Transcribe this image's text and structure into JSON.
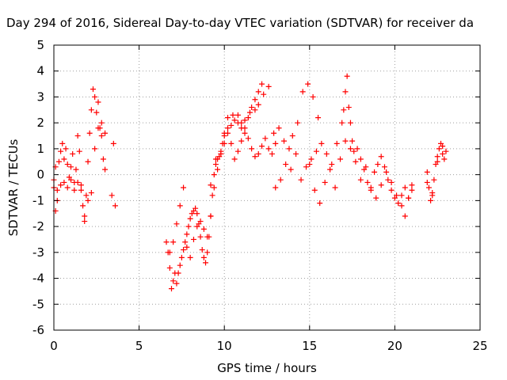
{
  "chart_data": {
    "type": "scatter",
    "title": "Day 294 of 2016, Sidereal Day-to-day VTEC variation (SDTVAR) for receiver da",
    "xlabel": "GPS time / hours",
    "ylabel": "SDTVAR / TECUs",
    "xlim": [
      0,
      25
    ],
    "ylim": [
      -6,
      5
    ],
    "xticks": [
      "0",
      "5",
      "10",
      "15",
      "20",
      "25"
    ],
    "yticks": [
      "-6",
      "-5",
      "-4",
      "-3",
      "-2",
      "-1",
      "0",
      "1",
      "2",
      "3",
      "4",
      "5"
    ],
    "grid": true,
    "marker": "+",
    "series": [
      {
        "name": "SDTVAR",
        "color": "#ff0000",
        "x": [
          0.0,
          0.1,
          0.2,
          0.3,
          0.4,
          0.5,
          0.6,
          0.7,
          0.8,
          0.9,
          1.0,
          1.1,
          1.2,
          1.3,
          1.4,
          1.5,
          1.6,
          1.7,
          1.8,
          1.9,
          2.0,
          2.1,
          2.2,
          2.3,
          2.4,
          2.5,
          2.6,
          2.7,
          2.8,
          2.9,
          3.0,
          3.5,
          3.6,
          0.0,
          0.1,
          0.2,
          0.4,
          0.6,
          0.8,
          1.0,
          1.2,
          1.4,
          1.6,
          1.8,
          2.0,
          2.2,
          2.4,
          2.6,
          2.8,
          3.0,
          3.4,
          6.6,
          6.7,
          6.8,
          6.9,
          7.0,
          7.1,
          7.2,
          7.3,
          7.4,
          7.5,
          7.6,
          7.7,
          7.8,
          7.9,
          8.0,
          8.1,
          8.2,
          8.3,
          8.4,
          8.5,
          8.6,
          8.7,
          8.8,
          8.9,
          9.0,
          9.1,
          9.2,
          9.3,
          9.4,
          9.5,
          9.6,
          9.7,
          9.8,
          9.9,
          10.0,
          10.2,
          10.4,
          10.6,
          10.8,
          11.0,
          11.2,
          11.4,
          11.6,
          11.8,
          12.0,
          12.2,
          6.8,
          7.0,
          7.2,
          7.4,
          7.6,
          7.8,
          8.0,
          8.2,
          8.4,
          8.6,
          8.8,
          9.0,
          9.2,
          9.4,
          9.6,
          9.8,
          10.0,
          10.2,
          10.4,
          10.6,
          10.8,
          11.0,
          11.2,
          11.4,
          11.6,
          11.8,
          12.0,
          12.2,
          12.4,
          12.6,
          12.8,
          13.0,
          9.2,
          9.5,
          9.8,
          10.0,
          10.2,
          10.5,
          10.8,
          11.0,
          11.2,
          11.5,
          11.8,
          12.0,
          12.3,
          12.6,
          12.9,
          13.2,
          13.5,
          13.8,
          14.0,
          14.3,
          14.6,
          14.9,
          15.2,
          15.5,
          13.0,
          13.3,
          13.6,
          13.9,
          14.2,
          14.5,
          14.8,
          15.1,
          15.4,
          15.7,
          16.0,
          16.3,
          16.6,
          16.9,
          17.0,
          17.1,
          17.2,
          17.3,
          17.4,
          17.5,
          17.6,
          17.8,
          18.0,
          18.2,
          18.4,
          18.6,
          18.8,
          19.0,
          19.2,
          19.4,
          19.6,
          19.8,
          20.0,
          20.2,
          20.4,
          20.6,
          20.8,
          21.0,
          15.0,
          15.3,
          15.6,
          15.9,
          16.2,
          16.5,
          16.8,
          17.1,
          17.4,
          17.7,
          18.0,
          18.3,
          18.6,
          18.9,
          19.2,
          19.5,
          19.8,
          20.1,
          20.4,
          20.6,
          20.8,
          21.0,
          21.9,
          22.0,
          22.1,
          22.2,
          22.3,
          22.4,
          22.5,
          22.6,
          22.7,
          22.8,
          22.9,
          23.0,
          21.9,
          22.2,
          22.5,
          22.8
        ],
        "y": [
          -0.2,
          0.3,
          -0.6,
          0.5,
          0.9,
          1.2,
          0.6,
          1.0,
          0.4,
          -0.1,
          0.3,
          0.8,
          -0.3,
          0.2,
          1.5,
          0.9,
          -0.6,
          -1.2,
          -1.8,
          -0.8,
          0.5,
          1.6,
          2.5,
          3.3,
          3.0,
          2.4,
          2.8,
          1.8,
          1.5,
          0.6,
          0.2,
          1.2,
          -1.2,
          -0.5,
          -1.4,
          -1.0,
          -0.4,
          -0.3,
          -0.5,
          -0.2,
          -0.6,
          -0.3,
          -0.4,
          -1.6,
          -1.0,
          -0.7,
          1.0,
          1.8,
          2.0,
          1.6,
          -0.8,
          -2.6,
          -3.0,
          -3.6,
          -4.4,
          -4.1,
          -3.8,
          -4.2,
          -3.8,
          -3.5,
          -3.2,
          -2.9,
          -2.6,
          -2.3,
          -2.0,
          -1.7,
          -1.5,
          -1.4,
          -1.3,
          -1.5,
          -1.9,
          -2.4,
          -2.9,
          -3.2,
          -3.4,
          -3.0,
          -2.4,
          -1.6,
          -0.8,
          0.0,
          0.4,
          0.6,
          0.7,
          0.8,
          1.2,
          1.6,
          1.8,
          1.2,
          0.6,
          0.9,
          1.3,
          1.6,
          1.4,
          1.0,
          0.7,
          0.8,
          1.1,
          -3.0,
          -2.6,
          -1.9,
          -1.2,
          -0.5,
          -2.8,
          -3.2,
          -2.5,
          -2.0,
          -1.8,
          -2.1,
          -2.4,
          -1.6,
          -0.5,
          0.2,
          0.8,
          1.2,
          1.6,
          1.9,
          2.1,
          2.3,
          2.0,
          1.8,
          2.2,
          2.6,
          2.9,
          3.2,
          3.5,
          1.4,
          1.0,
          0.8,
          1.2,
          -0.4,
          0.6,
          0.9,
          1.5,
          2.2,
          2.3,
          2.0,
          1.8,
          2.1,
          2.4,
          2.5,
          2.7,
          3.1,
          3.4,
          1.6,
          1.8,
          1.3,
          1.0,
          1.5,
          2.0,
          3.2,
          3.5,
          3.0,
          2.2,
          -0.5,
          -0.2,
          0.4,
          0.2,
          0.8,
          -0.2,
          0.3,
          0.6,
          0.9,
          1.2,
          0.8,
          0.4,
          1.2,
          2.0,
          2.5,
          3.2,
          3.8,
          2.6,
          2.0,
          1.3,
          0.9,
          1.0,
          0.6,
          0.2,
          -0.3,
          -0.5,
          0.1,
          0.4,
          0.7,
          0.3,
          -0.2,
          -0.6,
          -0.9,
          -1.1,
          -0.8,
          -0.5,
          -0.9,
          -0.6,
          0.4,
          -0.6,
          -1.1,
          -0.3,
          0.2,
          -0.5,
          0.6,
          1.3,
          1.0,
          0.5,
          -0.2,
          0.3,
          -0.6,
          -0.9,
          -0.4,
          0.1,
          -0.3,
          -0.8,
          -1.2,
          -1.6,
          -0.9,
          -0.4,
          0.1,
          -0.5,
          -1.0,
          -0.7,
          -0.2,
          0.4,
          0.7,
          1.0,
          1.2,
          0.8,
          0.6,
          0.9,
          -0.3,
          -0.8,
          0.5,
          1.1
        ]
      }
    ]
  }
}
